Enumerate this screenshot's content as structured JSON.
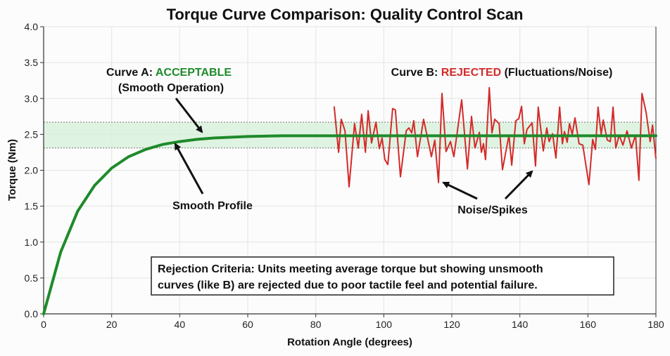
{
  "chart_data": {
    "type": "line",
    "title": "Torque Curve Comparison: Quality Control Scan",
    "xlabel": "Rotation Angle (degrees)",
    "ylabel": "Torque (Nm)",
    "xlim": [
      0,
      180
    ],
    "ylim": [
      0,
      4
    ],
    "xticks": [
      "0",
      "20",
      "40",
      "60",
      "80",
      "100",
      "120",
      "140",
      "160",
      "180"
    ],
    "yticks": [
      "0.0",
      "0.5",
      "1.0",
      "1.5",
      "2.0",
      "2.5",
      "3.0",
      "3.5",
      "4.0"
    ],
    "grid": true,
    "acceptable_band": [
      2.31,
      2.67
    ],
    "series": [
      {
        "name": "Curve A",
        "color": "#1f8a2a",
        "x": [
          0,
          5,
          10,
          15,
          20,
          25,
          30,
          35,
          40,
          45,
          50,
          60,
          70,
          80,
          90,
          100,
          110,
          120,
          130,
          140,
          150,
          160,
          170,
          180
        ],
        "y": [
          0,
          0.86,
          1.43,
          1.79,
          2.03,
          2.19,
          2.29,
          2.36,
          2.4,
          2.43,
          2.45,
          2.47,
          2.48,
          2.48,
          2.48,
          2.48,
          2.48,
          2.48,
          2.48,
          2.48,
          2.48,
          2.48,
          2.48,
          2.48
        ]
      },
      {
        "name": "Curve B",
        "color": "#d42a2a",
        "x": [
          85.4,
          86.7,
          87.5,
          88.6,
          89.8,
          91.4,
          92.5,
          93.5,
          94.6,
          95.4,
          96.4,
          97.7,
          98.7,
          99.5,
          100.3,
          101.2,
          102.6,
          103.4,
          104.9,
          106.6,
          107.4,
          108.2,
          108.8,
          109.9,
          111.7,
          114.0,
          115.0,
          116.1,
          117.1,
          118.3,
          119.6,
          120.6,
          122.9,
          124.6,
          125.8,
          126.8,
          128.1,
          128.7,
          129.3,
          129.9,
          131.0,
          131.8,
          132.6,
          133.9,
          134.9,
          136.8,
          137.6,
          138.8,
          139.7,
          140.5,
          141.3,
          142.1,
          143.6,
          144.6,
          145.4,
          146.9,
          147.9,
          148.6,
          149.6,
          150.6,
          151.7,
          152.5,
          153.1,
          153.9,
          154.6,
          155.4,
          156.2,
          157.4,
          158.5,
          160.3,
          161.4,
          162.2,
          163.0,
          163.9,
          164.5,
          165.7,
          166.6,
          167.4,
          168.2,
          169.2,
          170.3,
          171.5,
          172.8,
          174.0,
          175.0,
          175.9,
          177.1,
          178.3,
          179.0,
          180
        ],
        "y": [
          2.89,
          2.25,
          2.71,
          2.55,
          1.77,
          2.65,
          2.31,
          2.78,
          2.25,
          2.83,
          2.38,
          2.67,
          2.3,
          2.45,
          2.15,
          2.08,
          2.86,
          2.84,
          1.91,
          2.55,
          2.59,
          2.52,
          2.69,
          2.19,
          2.71,
          2.19,
          2.42,
          1.83,
          3.07,
          2.26,
          2.4,
          2.19,
          2.98,
          2.02,
          2.75,
          2.31,
          2.53,
          2.25,
          2.37,
          2.15,
          3.15,
          2.52,
          2.71,
          2.65,
          2.01,
          2.49,
          2.07,
          2.69,
          2.72,
          2.89,
          2.37,
          2.57,
          2.66,
          2.06,
          2.88,
          2.27,
          2.59,
          2.4,
          2.51,
          2.17,
          2.88,
          2.37,
          2.54,
          2.39,
          2.65,
          2.5,
          2.73,
          2.37,
          2.35,
          1.8,
          2.43,
          2.29,
          2.88,
          2.5,
          2.7,
          2.42,
          2.4,
          2.88,
          2.31,
          2.49,
          2.35,
          2.55,
          2.31,
          2.49,
          1.86,
          3.07,
          2.81,
          2.4,
          2.63,
          2.16
        ]
      }
    ],
    "annotations": {
      "curve_a_prefix": "Curve A: ",
      "curve_a_status": "ACCEPTABLE",
      "curve_a_note": "(Smooth Operation)",
      "curve_b_prefix": "Curve B: ",
      "curve_b_status": "REJECTED",
      "curve_b_note": " (Fluctuations/Noise)",
      "smooth_profile": "Smooth Profile",
      "noise_spikes": "Noise/Spikes",
      "criteria_line1": "Rejection Criteria: Units meeting average torque but showing unsmooth",
      "criteria_line2": "curves (like B) are rejected due to poor tactile feel and potential failure."
    },
    "colors": {
      "accept": "#1f8a2a",
      "reject": "#d42a2a",
      "band": "#d8f0dc"
    }
  }
}
